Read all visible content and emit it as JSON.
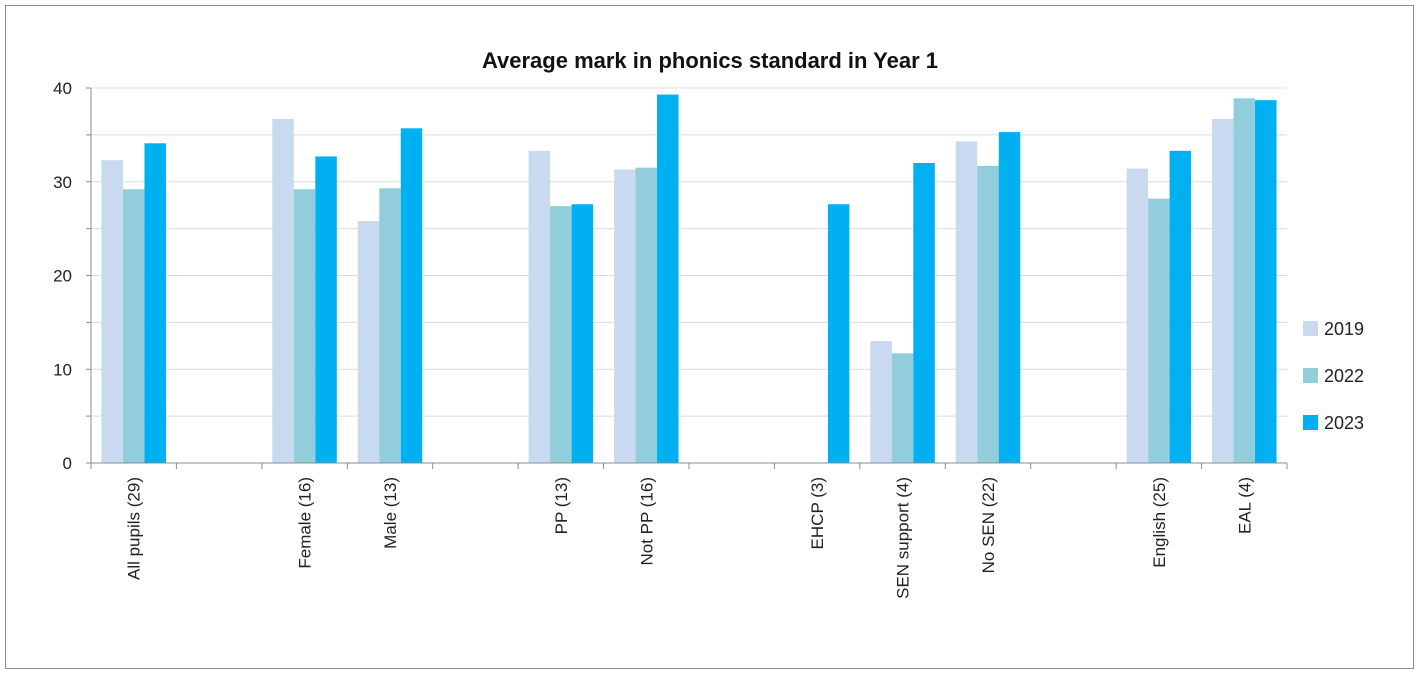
{
  "chart_data": {
    "type": "bar",
    "title": "Average mark in phonics standard in Year 1",
    "xlabel": "",
    "ylabel": "",
    "ylim": [
      0,
      40
    ],
    "yticks": [
      0,
      10,
      20,
      30,
      40
    ],
    "grid": true,
    "legend_position": "right",
    "categories": [
      "All pupils (29)",
      "",
      "Female (16)",
      "Male (13)",
      "",
      "PP (13)",
      "Not PP (16)",
      "",
      "EHCP (3)",
      "SEN support (4)",
      "No SEN (22)",
      "",
      "English (25)",
      "EAL (4)"
    ],
    "series": [
      {
        "name": "2019",
        "color": "#c9d9f0",
        "values": [
          32.3,
          null,
          36.7,
          25.8,
          null,
          33.3,
          31.3,
          null,
          null,
          13.0,
          34.3,
          null,
          31.4,
          36.7
        ]
      },
      {
        "name": "2022",
        "color": "#92cddc",
        "values": [
          29.2,
          null,
          29.2,
          29.3,
          null,
          27.4,
          31.5,
          null,
          null,
          11.7,
          31.7,
          null,
          28.2,
          38.9
        ]
      },
      {
        "name": "2023",
        "color": "#00b0f0",
        "values": [
          34.1,
          null,
          32.7,
          35.7,
          null,
          27.6,
          39.3,
          null,
          27.6,
          32.0,
          35.3,
          null,
          33.3,
          38.7
        ]
      }
    ]
  }
}
